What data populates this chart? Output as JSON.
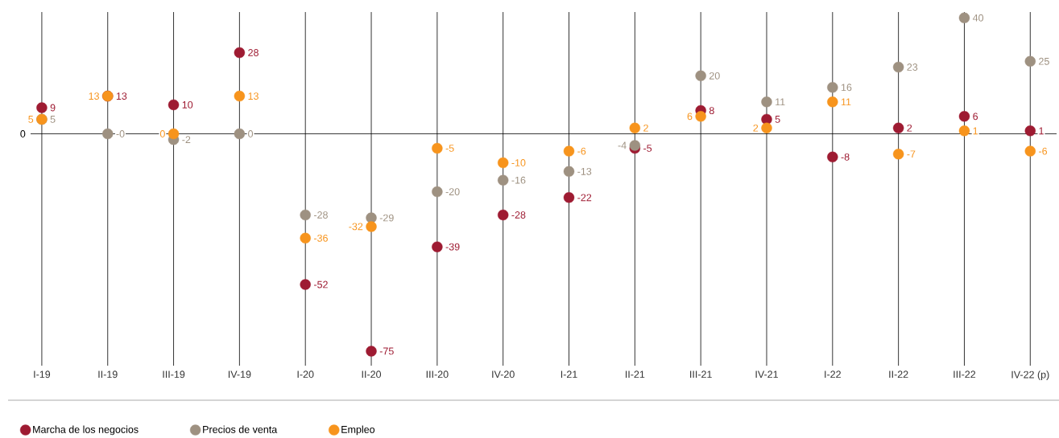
{
  "chart_data": {
    "type": "scatter",
    "categories": [
      "I-19",
      "II-19",
      "III-19",
      "IV-19",
      "I-20",
      "II-20",
      "III-20",
      "IV-20",
      "I-21",
      "II-21",
      "III-21",
      "IV-21",
      "I-22",
      "II-22",
      "III-22",
      "IV-22 (p)"
    ],
    "series": [
      {
        "name": "Marcha de los negocios",
        "color": "#9e1b32",
        "values": [
          9,
          13,
          10,
          28,
          -52,
          -75,
          -39,
          -28,
          -22,
          -5,
          8,
          5,
          -8,
          2,
          6,
          1
        ],
        "value_labels": [
          "9",
          "13",
          "10",
          "28",
          "-52",
          "-75",
          "-39",
          "-28",
          "-22",
          "-5",
          "8",
          "5",
          "-8",
          "2",
          "6",
          "1"
        ]
      },
      {
        "name": "Precios de venta",
        "color": "#9e9181",
        "values": [
          5,
          0,
          -2,
          0,
          -28,
          -29,
          -20,
          -16,
          -13,
          -4,
          20,
          11,
          16,
          23,
          40,
          25
        ],
        "value_labels": [
          "5",
          "-0",
          "-2",
          "0",
          "-28",
          "-29",
          "-20",
          "-16",
          "-13",
          "-4",
          "20",
          "11",
          "16",
          "23",
          "40",
          "25"
        ]
      },
      {
        "name": "Empleo",
        "color": "#f7941d",
        "values": [
          5,
          13,
          0,
          13,
          -36,
          -32,
          -5,
          -10,
          -6,
          2,
          6,
          2,
          11,
          -7,
          1,
          -6
        ],
        "value_labels": [
          "5",
          "13",
          "0",
          "13",
          "-36",
          "-32",
          "-5",
          "-10",
          "-6",
          "2",
          "6",
          "2",
          "11",
          "-7",
          "1",
          "-6"
        ]
      }
    ],
    "ylim": [
      -80,
      42
    ],
    "ref_lines": [
      {
        "axis": "y",
        "value": 0
      }
    ],
    "annotations": [
      "0"
    ],
    "grid": "x",
    "legend": "bottom"
  }
}
